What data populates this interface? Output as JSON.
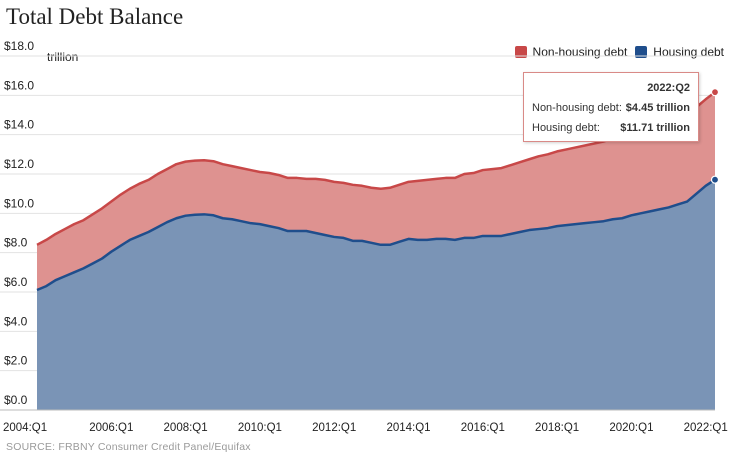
{
  "chart_data": {
    "type": "area",
    "title": "Total Debt Balance",
    "unit_label": "trillion",
    "source": "SOURCE: FRBNY Consumer Credit Panel/Equifax",
    "ylim": [
      0,
      18
    ],
    "y_ticks": [
      "$0.0",
      "$2.0",
      "$4.0",
      "$6.0",
      "$8.0",
      "$10.0",
      "$12.0",
      "$14.0",
      "$16.0",
      "$18.0"
    ],
    "x_ticks": [
      "2004:Q1",
      "2006:Q1",
      "2008:Q1",
      "2010:Q1",
      "2012:Q1",
      "2014:Q1",
      "2016:Q1",
      "2018:Q1",
      "2020:Q1",
      "2022:Q1"
    ],
    "x_start": "2004:Q1",
    "x_end": "2022:Q2",
    "stacked": true,
    "grid": "horizontal",
    "legend_position": "top-right",
    "x": [
      "2004:Q1",
      "2004:Q2",
      "2004:Q3",
      "2004:Q4",
      "2005:Q1",
      "2005:Q2",
      "2005:Q3",
      "2005:Q4",
      "2006:Q1",
      "2006:Q2",
      "2006:Q3",
      "2006:Q4",
      "2007:Q1",
      "2007:Q2",
      "2007:Q3",
      "2007:Q4",
      "2008:Q1",
      "2008:Q2",
      "2008:Q3",
      "2008:Q4",
      "2009:Q1",
      "2009:Q2",
      "2009:Q3",
      "2009:Q4",
      "2010:Q1",
      "2010:Q2",
      "2010:Q3",
      "2010:Q4",
      "2011:Q1",
      "2011:Q2",
      "2011:Q3",
      "2011:Q4",
      "2012:Q1",
      "2012:Q2",
      "2012:Q3",
      "2012:Q4",
      "2013:Q1",
      "2013:Q2",
      "2013:Q3",
      "2013:Q4",
      "2014:Q1",
      "2014:Q2",
      "2014:Q3",
      "2014:Q4",
      "2015:Q1",
      "2015:Q2",
      "2015:Q3",
      "2015:Q4",
      "2016:Q1",
      "2016:Q2",
      "2016:Q3",
      "2016:Q4",
      "2017:Q1",
      "2017:Q2",
      "2017:Q3",
      "2017:Q4",
      "2018:Q1",
      "2018:Q2",
      "2018:Q3",
      "2018:Q4",
      "2019:Q1",
      "2019:Q2",
      "2019:Q3",
      "2019:Q4",
      "2020:Q1",
      "2020:Q2",
      "2020:Q3",
      "2020:Q4",
      "2021:Q1",
      "2021:Q2",
      "2021:Q3",
      "2021:Q4",
      "2022:Q1",
      "2022:Q2"
    ],
    "series": [
      {
        "name": "Housing debt",
        "color": "#1f4e8c",
        "fill": "#7a94b6",
        "values": [
          6.1,
          6.3,
          6.6,
          6.8,
          7.0,
          7.2,
          7.45,
          7.7,
          8.05,
          8.35,
          8.65,
          8.85,
          9.05,
          9.3,
          9.55,
          9.75,
          9.88,
          9.93,
          9.95,
          9.9,
          9.75,
          9.7,
          9.6,
          9.5,
          9.45,
          9.35,
          9.25,
          9.1,
          9.1,
          9.1,
          9.0,
          8.9,
          8.8,
          8.75,
          8.6,
          8.6,
          8.5,
          8.4,
          8.4,
          8.55,
          8.7,
          8.65,
          8.65,
          8.7,
          8.7,
          8.65,
          8.75,
          8.75,
          8.85,
          8.85,
          8.85,
          8.95,
          9.05,
          9.15,
          9.2,
          9.25,
          9.35,
          9.4,
          9.45,
          9.5,
          9.55,
          9.6,
          9.7,
          9.75,
          9.9,
          10.0,
          10.1,
          10.2,
          10.3,
          10.45,
          10.6,
          11.0,
          11.4,
          11.71
        ]
      },
      {
        "name": "Non-housing debt",
        "color": "#c84848",
        "fill": "#de9290",
        "values": [
          2.3,
          2.35,
          2.35,
          2.4,
          2.45,
          2.45,
          2.5,
          2.55,
          2.55,
          2.6,
          2.6,
          2.65,
          2.65,
          2.7,
          2.7,
          2.75,
          2.75,
          2.75,
          2.75,
          2.75,
          2.75,
          2.7,
          2.7,
          2.7,
          2.65,
          2.7,
          2.7,
          2.7,
          2.7,
          2.65,
          2.75,
          2.8,
          2.8,
          2.8,
          2.85,
          2.8,
          2.8,
          2.85,
          2.9,
          2.9,
          2.9,
          3.0,
          3.05,
          3.05,
          3.1,
          3.15,
          3.25,
          3.3,
          3.35,
          3.4,
          3.45,
          3.5,
          3.55,
          3.6,
          3.7,
          3.75,
          3.8,
          3.85,
          3.9,
          3.95,
          4.0,
          4.05,
          4.1,
          4.15,
          4.15,
          4.15,
          4.2,
          4.25,
          4.3,
          4.3,
          4.35,
          4.4,
          4.4,
          4.45
        ]
      }
    ]
  },
  "tooltip": {
    "period": "2022:Q2",
    "rows": [
      {
        "label": "Non-housing debt:",
        "value": "$4.45 trillion"
      },
      {
        "label": "Housing debt:",
        "value": "$11.71 trillion"
      }
    ]
  }
}
